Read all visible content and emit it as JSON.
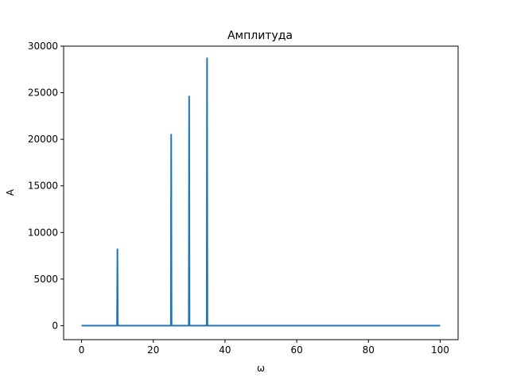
{
  "chart_data": {
    "type": "line",
    "title": "Амплитуда",
    "xlabel": "ω",
    "ylabel": "A",
    "xlim": [
      -5,
      105
    ],
    "ylim": [
      -1500,
      30000
    ],
    "x_ticks": [
      0,
      20,
      40,
      60,
      80,
      100
    ],
    "y_ticks": [
      0,
      5000,
      10000,
      15000,
      20000,
      25000,
      30000
    ],
    "grid": false,
    "legend": "none",
    "series": [
      {
        "color": "#1f77b4",
        "x": [
          0,
          9.9,
          10,
          10.1,
          24.9,
          25,
          25.1,
          29.9,
          30,
          30.1,
          34.9,
          35,
          35.1,
          100
        ],
        "y": [
          0,
          0,
          8200,
          0,
          0,
          20500,
          0,
          0,
          24600,
          0,
          0,
          28700,
          0,
          0
        ]
      }
    ]
  }
}
